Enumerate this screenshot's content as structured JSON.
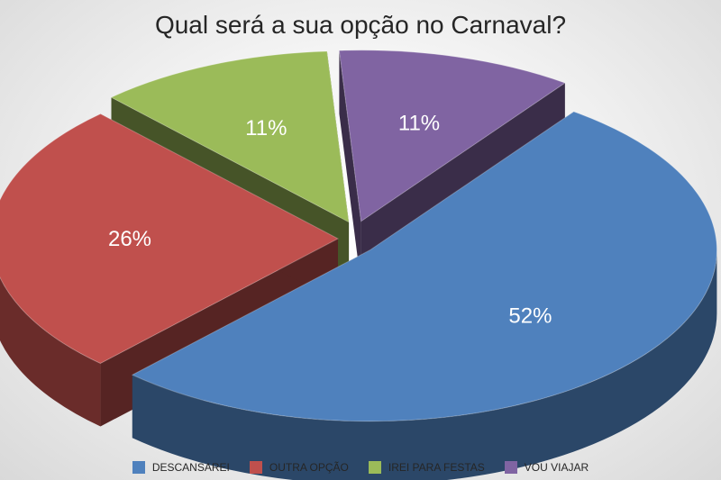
{
  "chart_data": {
    "type": "pie",
    "title": "Qual será a sua opção no Carnaval?",
    "categories": [
      "DESCANSAREI",
      "OUTRA OPÇÃO",
      "IREI PARA FESTAS",
      "VOU VIAJAR"
    ],
    "values": [
      52,
      26,
      11,
      11
    ],
    "data_labels": [
      "52%",
      "26%",
      "11%",
      "11%"
    ],
    "colors": [
      "#4f81bd",
      "#c0504d",
      "#9bbb59",
      "#8064a2"
    ],
    "exploded": true,
    "three_d": true,
    "legend_position": "bottom"
  }
}
